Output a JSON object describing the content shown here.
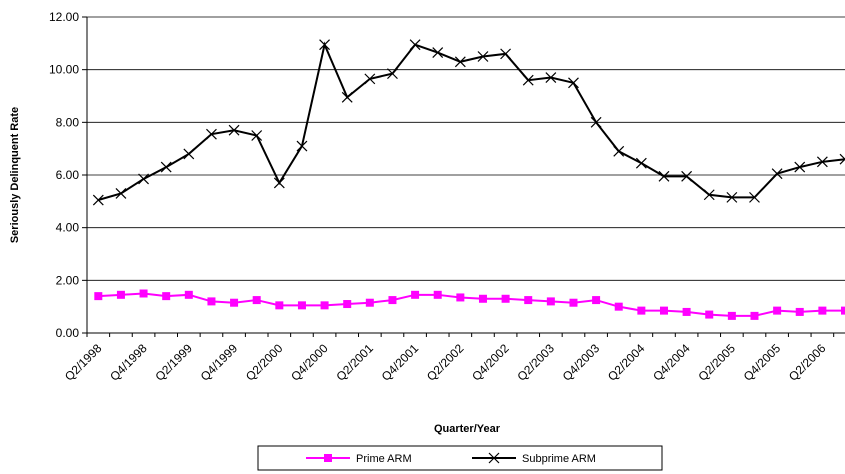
{
  "chart_data": {
    "type": "line",
    "title": "",
    "xlabel": "Quarter/Year",
    "ylabel": "Seriously Delinquent Rate",
    "ylim": [
      0,
      12
    ],
    "yticks": [
      "0.00",
      "2.00",
      "4.00",
      "6.00",
      "8.00",
      "10.00",
      "12.00"
    ],
    "grid": "y-major",
    "legend": "bottom",
    "x": [
      "Q2/1998",
      "Q3/1998",
      "Q4/1998",
      "Q1/1999",
      "Q2/1999",
      "Q3/1999",
      "Q4/1999",
      "Q1/2000",
      "Q2/2000",
      "Q3/2000",
      "Q4/2000",
      "Q1/2001",
      "Q2/2001",
      "Q3/2001",
      "Q4/2001",
      "Q1/2002",
      "Q2/2002",
      "Q3/2002",
      "Q4/2002",
      "Q1/2003",
      "Q2/2003",
      "Q3/2003",
      "Q4/2003",
      "Q1/2004",
      "Q2/2004",
      "Q3/2004",
      "Q4/2004",
      "Q1/2005",
      "Q2/2005",
      "Q3/2005",
      "Q4/2005",
      "Q1/2006",
      "Q2/2006",
      "Q3/2006"
    ],
    "xtick_labels": [
      "Q2/1998",
      "Q4/1998",
      "Q2/1999",
      "Q4/1999",
      "Q2/2000",
      "Q4/2000",
      "Q2/2001",
      "Q4/2001",
      "Q2/2002",
      "Q4/2002",
      "Q2/2003",
      "Q4/2003",
      "Q2/2004",
      "Q4/2004",
      "Q2/2005",
      "Q4/2005",
      "Q2/2006"
    ],
    "series": [
      {
        "name": "Prime ARM",
        "color": "#ff00ff",
        "marker": "square",
        "values": [
          1.4,
          1.45,
          1.5,
          1.4,
          1.45,
          1.2,
          1.15,
          1.25,
          1.05,
          1.05,
          1.05,
          1.1,
          1.15,
          1.25,
          1.45,
          1.45,
          1.35,
          1.3,
          1.3,
          1.25,
          1.2,
          1.15,
          1.25,
          1.0,
          0.85,
          0.85,
          0.8,
          0.7,
          0.65,
          0.65,
          0.85,
          0.8,
          0.85,
          0.85
        ]
      },
      {
        "name": "Subprime ARM",
        "color": "#000000",
        "marker": "x",
        "values": [
          5.05,
          5.3,
          5.85,
          6.3,
          6.8,
          7.55,
          7.7,
          7.5,
          5.7,
          7.1,
          10.95,
          8.95,
          9.65,
          9.85,
          10.95,
          10.65,
          10.3,
          10.5,
          10.6,
          9.6,
          9.7,
          9.5,
          8.0,
          6.9,
          6.45,
          5.95,
          5.95,
          5.25,
          5.15,
          5.15,
          6.05,
          6.3,
          6.5,
          6.6
        ]
      }
    ]
  }
}
